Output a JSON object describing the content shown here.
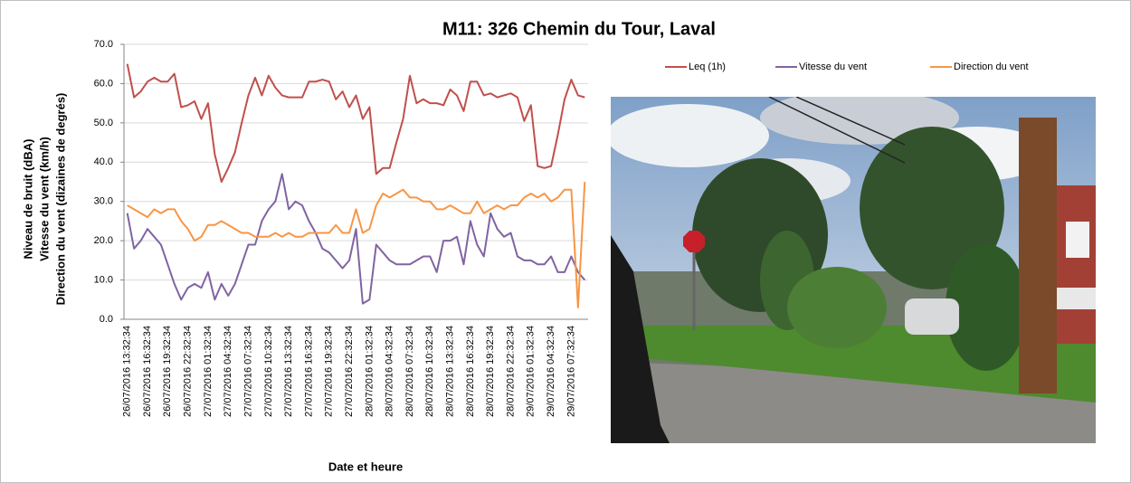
{
  "chart_data": {
    "type": "line",
    "title": "M11: 326 Chemin du Tour, Laval",
    "x_label": "Date et heure",
    "y_label": [
      "Niveau de bruit (dBA)",
      "Vitesse du vent (km/h)",
      "Direction du vent (dizaines de degrés)"
    ],
    "categories": [
      "26/07/2016 13:32:34",
      null,
      null,
      "26/07/2016 16:32:34",
      null,
      null,
      "26/07/2016 19:32:34",
      null,
      null,
      "26/07/2016 22:32:34",
      null,
      null,
      "27/07/2016 01:32:34",
      null,
      null,
      "27/07/2016 04:32:34",
      null,
      null,
      "27/07/2016 07:32:34",
      null,
      null,
      "27/07/2016 10:32:34",
      null,
      null,
      "27/07/2016 13:32:34",
      null,
      null,
      "27/07/2016 16:32:34",
      null,
      null,
      "27/07/2016 19:32:34",
      null,
      null,
      "27/07/2016 22:32:34",
      null,
      null,
      "28/07/2016 01:32:34",
      null,
      null,
      "28/07/2016 04:32:34",
      null,
      null,
      "28/07/2016 07:32:34",
      null,
      null,
      "28/07/2016 10:32:34",
      null,
      null,
      "28/07/2016 13:32:34",
      null,
      null,
      "28/07/2016 16:32:34",
      null,
      null,
      "28/07/2016 19:32:34",
      null,
      null,
      "28/07/2016 22:32:34",
      null,
      null,
      "29/07/2016 01:32:34",
      null,
      null,
      "29/07/2016 04:32:34",
      null,
      null,
      "29/07/2016 07:32:34",
      null,
      null
    ],
    "series": [
      {
        "name": "Leq (1h)",
        "color": "#c0504d",
        "values": [
          65,
          56.5,
          58,
          60.5,
          61.5,
          60.5,
          60.5,
          62.5,
          54,
          54.5,
          55.5,
          51,
          55,
          42,
          35,
          38.5,
          42.5,
          50,
          57,
          61.5,
          57,
          62,
          59,
          57,
          56.5,
          56.5,
          56.5,
          60.5,
          60.5,
          61,
          60.5,
          56,
          58,
          54,
          57,
          51,
          54,
          37,
          38.5,
          38.5,
          45,
          51,
          62,
          55,
          56,
          55,
          55,
          54.5,
          58.5,
          57,
          53,
          60.5,
          60.5,
          57,
          57.5,
          56.5,
          57,
          57.5,
          56.5,
          50.5,
          54.5,
          39,
          38.5,
          39,
          47,
          56,
          61,
          57,
          56.5
        ]
      },
      {
        "name": "Vitesse du vent",
        "color": "#8064a2",
        "values": [
          27,
          18,
          20,
          23,
          21,
          19,
          14,
          9,
          5,
          8,
          9,
          8,
          12,
          5,
          9,
          6,
          9,
          14,
          19,
          19,
          25,
          28,
          30,
          37,
          28,
          30,
          29,
          25,
          22,
          18,
          17,
          15,
          13,
          15,
          23,
          4,
          5,
          19,
          17,
          15,
          14,
          14,
          14,
          15,
          16,
          16,
          12,
          20,
          20,
          21,
          14,
          25,
          19,
          16,
          27,
          23,
          21,
          22,
          16,
          15,
          15,
          14,
          14,
          16,
          12,
          12,
          16,
          12,
          10
        ]
      },
      {
        "name": "Direction du vent",
        "color": "#f79646",
        "values": [
          29,
          28,
          27,
          26,
          28,
          27,
          28,
          28,
          25,
          23,
          20,
          21,
          24,
          24,
          25,
          24,
          23,
          22,
          22,
          21,
          21,
          21,
          22,
          21,
          22,
          21,
          21,
          22,
          22,
          22,
          22,
          24,
          22,
          22,
          28,
          22,
          23,
          29,
          32,
          31,
          32,
          33,
          31,
          31,
          30,
          30,
          28,
          28,
          29,
          28,
          27,
          27,
          30,
          27,
          28,
          29,
          28,
          29,
          29,
          31,
          32,
          31,
          32,
          30,
          31,
          33,
          33,
          3,
          35
        ]
      }
    ],
    "ylim": [
      0,
      70
    ],
    "yticks": [
      {
        "value": 0,
        "label": "0.0"
      },
      {
        "value": 10,
        "label": "10.0"
      },
      {
        "value": 20,
        "label": "20.0"
      },
      {
        "value": 30,
        "label": "30.0"
      },
      {
        "value": 40,
        "label": "40.0"
      },
      {
        "value": 50,
        "label": "50.0"
      },
      {
        "value": 60,
        "label": "60.0"
      },
      {
        "value": 70,
        "label": "70.0"
      }
    ],
    "grid": true,
    "legend": "top-right"
  }
}
